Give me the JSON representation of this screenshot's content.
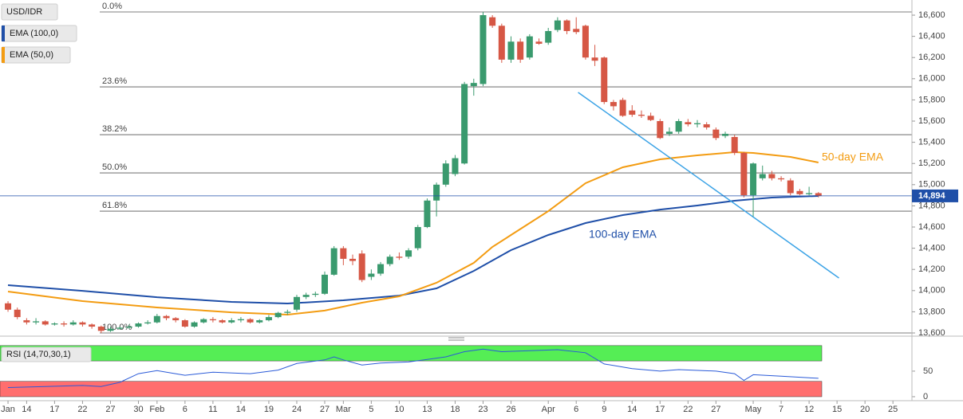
{
  "chart_data": {
    "type": "candlestick",
    "symbol": "USD/IDR",
    "up_color": "#3a9a6e",
    "down_color": "#d65745",
    "ohlc": [
      [
        13880,
        13900,
        13800,
        13820
      ],
      [
        13820,
        13840,
        13730,
        13750
      ],
      [
        13720,
        13740,
        13680,
        13700
      ],
      [
        13700,
        13740,
        13680,
        13710
      ],
      [
        13710,
        13720,
        13670,
        13680
      ],
      [
        13680,
        13700,
        13670,
        13690
      ],
      [
        13690,
        13710,
        13660,
        13680
      ],
      [
        13680,
        13720,
        13670,
        13700
      ],
      [
        13700,
        13710,
        13660,
        13680
      ],
      [
        13680,
        13690,
        13640,
        13660
      ],
      [
        13660,
        13670,
        13600,
        13620
      ],
      [
        13620,
        13660,
        13610,
        13640
      ],
      [
        13640,
        13660,
        13630,
        13650
      ],
      [
        13650,
        13680,
        13640,
        13660
      ],
      [
        13660,
        13700,
        13650,
        13690
      ],
      [
        13690,
        13720,
        13680,
        13700
      ],
      [
        13700,
        13780,
        13690,
        13760
      ],
      [
        13760,
        13770,
        13720,
        13740
      ],
      [
        13740,
        13750,
        13700,
        13720
      ],
      [
        13720,
        13730,
        13650,
        13660
      ],
      [
        13660,
        13710,
        13650,
        13700
      ],
      [
        13700,
        13740,
        13690,
        13730
      ],
      [
        13730,
        13750,
        13700,
        13720
      ],
      [
        13720,
        13730,
        13690,
        13700
      ],
      [
        13700,
        13740,
        13690,
        13720
      ],
      [
        13720,
        13750,
        13700,
        13730
      ],
      [
        13730,
        13740,
        13690,
        13700
      ],
      [
        13700,
        13730,
        13690,
        13720
      ],
      [
        13720,
        13770,
        13710,
        13750
      ],
      [
        13750,
        13800,
        13740,
        13790
      ],
      [
        13790,
        13820,
        13770,
        13800
      ],
      [
        13820,
        13960,
        13800,
        13940
      ],
      [
        13940,
        13980,
        13920,
        13960
      ],
      [
        13960,
        13990,
        13940,
        13970
      ],
      [
        13970,
        14180,
        13960,
        14150
      ],
      [
        14150,
        14420,
        14140,
        14400
      ],
      [
        14400,
        14420,
        14240,
        14300
      ],
      [
        14300,
        14340,
        14240,
        14280
      ],
      [
        14350,
        14380,
        14080,
        14100
      ],
      [
        14130,
        14200,
        14100,
        14160
      ],
      [
        14160,
        14270,
        14140,
        14250
      ],
      [
        14250,
        14340,
        14230,
        14320
      ],
      [
        14320,
        14360,
        14290,
        14310
      ],
      [
        14320,
        14400,
        14300,
        14380
      ],
      [
        14400,
        14620,
        14380,
        14600
      ],
      [
        14600,
        14870,
        14590,
        14850
      ],
      [
        14850,
        15020,
        14700,
        15000
      ],
      [
        15000,
        15230,
        14980,
        15200
      ],
      [
        15100,
        15280,
        15080,
        15250
      ],
      [
        15200,
        15970,
        15190,
        15950
      ],
      [
        15930,
        16000,
        15840,
        15960
      ],
      [
        15950,
        16630,
        15930,
        16600
      ],
      [
        16580,
        16600,
        16480,
        16500
      ],
      [
        16500,
        16520,
        16150,
        16180
      ],
      [
        16180,
        16400,
        16150,
        16350
      ],
      [
        16350,
        16380,
        16150,
        16180
      ],
      [
        16200,
        16420,
        16180,
        16400
      ],
      [
        16350,
        16380,
        16320,
        16330
      ],
      [
        16340,
        16480,
        16320,
        16450
      ],
      [
        16460,
        16580,
        16440,
        16550
      ],
      [
        16550,
        16560,
        16420,
        16450
      ],
      [
        16470,
        16580,
        16420,
        16440
      ],
      [
        16500,
        16510,
        16180,
        16200
      ],
      [
        16200,
        16320,
        16120,
        16170
      ],
      [
        16200,
        16210,
        15760,
        15780
      ],
      [
        15780,
        15800,
        15700,
        15740
      ],
      [
        15800,
        15820,
        15640,
        15650
      ],
      [
        15700,
        15750,
        15640,
        15660
      ],
      [
        15660,
        15700,
        15630,
        15650
      ],
      [
        15650,
        15680,
        15600,
        15610
      ],
      [
        15600,
        15620,
        15430,
        15440
      ],
      [
        15480,
        15540,
        15460,
        15500
      ],
      [
        15500,
        15620,
        15480,
        15600
      ],
      [
        15590,
        15620,
        15550,
        15570
      ],
      [
        15570,
        15610,
        15540,
        15580
      ],
      [
        15570,
        15590,
        15520,
        15540
      ],
      [
        15520,
        15540,
        15420,
        15440
      ],
      [
        15460,
        15500,
        15440,
        15480
      ],
      [
        15450,
        15470,
        15280,
        15300
      ],
      [
        15300,
        15310,
        14880,
        14900
      ],
      [
        14900,
        15210,
        14700,
        15200
      ],
      [
        15060,
        15180,
        15040,
        15100
      ],
      [
        15100,
        15130,
        15040,
        15060
      ],
      [
        15060,
        15080,
        15030,
        15050
      ],
      [
        15040,
        15060,
        14900,
        14920
      ],
      [
        14940,
        14960,
        14900,
        14910
      ],
      [
        14910,
        14980,
        14900,
        14920
      ],
      [
        14920,
        14930,
        14880,
        14894
      ]
    ],
    "xlim": [
      -0.86,
      97.04
    ],
    "xticks": [
      {
        "value": 0,
        "label": "Jan"
      },
      {
        "value": 2,
        "label": "14"
      },
      {
        "value": 5,
        "label": "17"
      },
      {
        "value": 8,
        "label": "22"
      },
      {
        "value": 11,
        "label": "27"
      },
      {
        "value": 14,
        "label": "30"
      },
      {
        "value": 16,
        "label": "Feb"
      },
      {
        "value": 19,
        "label": "6"
      },
      {
        "value": 22,
        "label": "11"
      },
      {
        "value": 25,
        "label": "14"
      },
      {
        "value": 28,
        "label": "19"
      },
      {
        "value": 31,
        "label": "24"
      },
      {
        "value": 34,
        "label": "27"
      },
      {
        "value": 36,
        "label": "Mar"
      },
      {
        "value": 39,
        "label": "5"
      },
      {
        "value": 42,
        "label": "10"
      },
      {
        "value": 45,
        "label": "13"
      },
      {
        "value": 48,
        "label": "18"
      },
      {
        "value": 51,
        "label": "23"
      },
      {
        "value": 54,
        "label": "26"
      },
      {
        "value": 58,
        "label": "Apr"
      },
      {
        "value": 61,
        "label": "6"
      },
      {
        "value": 64,
        "label": "9"
      },
      {
        "value": 67,
        "label": "14"
      },
      {
        "value": 70,
        "label": "17"
      },
      {
        "value": 73,
        "label": "22"
      },
      {
        "value": 76,
        "label": "27"
      },
      {
        "value": 80,
        "label": "May"
      },
      {
        "value": 83,
        "label": "7"
      },
      {
        "value": 86,
        "label": "12"
      },
      {
        "value": 89,
        "label": "15"
      },
      {
        "value": 92,
        "label": "20"
      },
      {
        "value": 95,
        "label": "25"
      }
    ],
    "ylim": [
      13570,
      16743
    ],
    "yticks": [
      {
        "value": 13600,
        "label": "13,600"
      },
      {
        "value": 13800,
        "label": "13,800"
      },
      {
        "value": 14000,
        "label": "14,000"
      },
      {
        "value": 14200,
        "label": "14,200"
      },
      {
        "value": 14400,
        "label": "14,400"
      },
      {
        "value": 14600,
        "label": "14,600"
      },
      {
        "value": 14800,
        "label": "14,800"
      },
      {
        "value": 15000,
        "label": "15,000"
      },
      {
        "value": 15200,
        "label": "15,200"
      },
      {
        "value": 15400,
        "label": "15,400"
      },
      {
        "value": 15600,
        "label": "15,600"
      },
      {
        "value": 15800,
        "label": "15,800"
      },
      {
        "value": 16000,
        "label": "16,000"
      },
      {
        "value": 16200,
        "label": "16,200"
      },
      {
        "value": 16400,
        "label": "16,400"
      },
      {
        "value": 16600,
        "label": "16,600"
      }
    ],
    "last_price": {
      "value": 14894,
      "label": "14,894",
      "color": "#1f4fa8"
    },
    "series": [
      {
        "name": "EMA (100,0)",
        "color": "#1f4fa8",
        "x": [
          0,
          8,
          16,
          24,
          30,
          36,
          42,
          46,
          50,
          54,
          58,
          62,
          66,
          70,
          74,
          78,
          82,
          87
        ],
        "values": [
          14051,
          13998,
          13938,
          13893,
          13878,
          13908,
          13953,
          14021,
          14186,
          14382,
          14525,
          14638,
          14713,
          14765,
          14803,
          14848,
          14878,
          14893
        ]
      },
      {
        "name": "EMA (50,0)",
        "color": "#f39c12",
        "x": [
          0,
          8,
          16,
          24,
          30,
          34,
          38,
          42,
          46,
          50,
          52,
          54,
          58,
          62,
          66,
          70,
          74,
          78,
          80,
          84,
          87
        ],
        "values": [
          13991,
          13901,
          13841,
          13795,
          13773,
          13811,
          13886,
          13946,
          14074,
          14262,
          14412,
          14525,
          14750,
          15014,
          15164,
          15239,
          15277,
          15307,
          15299,
          15262,
          15209
        ]
      }
    ],
    "fib_levels": [
      {
        "value": 16630,
        "label": "0.0%"
      },
      {
        "value": 15923,
        "label": "23.6%"
      },
      {
        "value": 15472,
        "label": "38.2%"
      },
      {
        "value": 15111,
        "label": "50.0%"
      },
      {
        "value": 14750,
        "label": "61.8%"
      },
      {
        "value": 13600,
        "label": "100.0%"
      }
    ],
    "trend_line": {
      "color": "#3ba3e6",
      "x": [
        61.2,
        89.2
      ],
      "values": [
        15871,
        14119
      ]
    },
    "annotations": [
      {
        "text": "50-day EMA",
        "color": "#f39c12"
      },
      {
        "text": "100-day EMA",
        "color": "#1f4fa8"
      }
    ],
    "rsi": {
      "name": "RSI (14,70,30,1)",
      "color": "#2a5ad8",
      "ylim": [
        0,
        106
      ],
      "yticks": [
        0,
        50
      ],
      "bands": [
        {
          "from": 70,
          "to": 100,
          "color": "#55ee55"
        },
        {
          "from": 0,
          "to": 30,
          "color": "#ff6e6e"
        }
      ],
      "x": [
        0,
        4,
        8,
        10,
        12,
        14,
        16,
        19,
        22,
        26,
        29,
        31,
        34,
        35,
        36,
        38,
        40,
        43,
        45,
        47,
        49,
        51,
        53,
        56,
        59,
        62,
        64,
        67,
        70,
        72,
        76,
        78,
        79,
        80,
        83,
        86,
        87
      ],
      "values": [
        18,
        20,
        22,
        20,
        28,
        45,
        51,
        42,
        48,
        45,
        52,
        65,
        72,
        78,
        72,
        62,
        66,
        68,
        73,
        78,
        88,
        93,
        88,
        90,
        92,
        86,
        64,
        55,
        50,
        53,
        50,
        45,
        32,
        43,
        40,
        37,
        36
      ]
    }
  }
}
